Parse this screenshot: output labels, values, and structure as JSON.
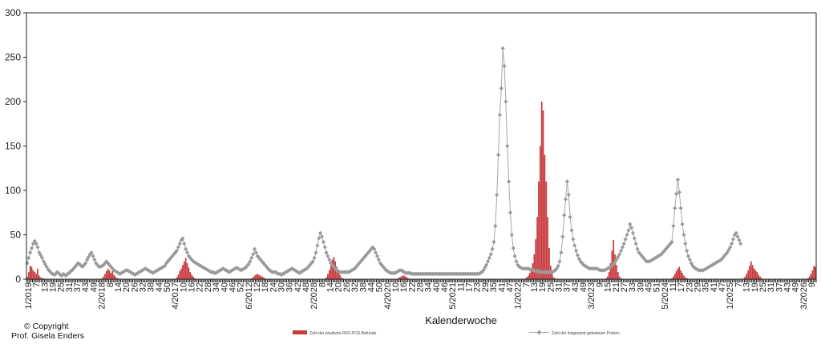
{
  "copyright": {
    "line1": "© Copyright",
    "line2": "Prof. Gisela Enders"
  },
  "colors": {
    "positive_bar": "#c8383c",
    "total_line": "#a8a8a8",
    "total_marker": "#9a9a9a",
    "axis": "#222222"
  },
  "chart_data": {
    "type": "bar",
    "title": "",
    "xlabel": "Kalenderwoche",
    "ylabel": "",
    "ylim": [
      0,
      300
    ],
    "yticks": [
      0,
      50,
      100,
      150,
      200,
      250,
      300
    ],
    "grid": false,
    "legend_position": "bottom",
    "x_start": "1/2019",
    "x_end": "9/2026",
    "x_tick_labels": [
      "1/2019",
      "7",
      "13",
      "19",
      "25",
      "31",
      "37",
      "43",
      "49",
      "2/2018",
      "8",
      "14",
      "20",
      "26",
      "32",
      "38",
      "44",
      "50",
      "4/2017",
      "10",
      "16",
      "22",
      "28",
      "34",
      "40",
      "46",
      "52",
      "6/2012",
      "12",
      "18",
      "24",
      "30",
      "36",
      "42",
      "48",
      "2/2028",
      "8",
      "14",
      "20",
      "26",
      "32",
      "38",
      "44",
      "50",
      "4/2020",
      "10",
      "16",
      "22",
      "28",
      "34",
      "40",
      "46",
      "5/2021",
      "11",
      "17",
      "23",
      "29",
      "35",
      "41",
      "47",
      "1/2022",
      "7",
      "13",
      "19",
      "25",
      "31",
      "37",
      "43",
      "49",
      "3/2023",
      "9",
      "15",
      "21",
      "27",
      "33",
      "39",
      "45",
      "51",
      "5/2024",
      "11",
      "17",
      "23",
      "29",
      "35",
      "41",
      "47",
      "1/2025",
      "7",
      "13",
      "19",
      "25",
      "31",
      "37",
      "43",
      "49",
      "3/2026",
      "9"
    ],
    "series": [
      {
        "name": "Zahl der positiven RSV-PCR-Befunde",
        "type": "bar",
        "values": [
          3,
          8,
          15,
          14,
          10,
          8,
          6,
          12,
          4,
          2,
          1,
          1,
          0,
          0,
          0,
          0,
          0,
          0,
          0,
          0,
          0,
          0,
          0,
          0,
          0,
          0,
          0,
          0,
          0,
          0,
          0,
          0,
          0,
          0,
          0,
          0,
          0,
          0,
          0,
          0,
          0,
          0,
          0,
          0,
          0,
          0,
          0,
          0,
          0,
          0,
          1,
          3,
          6,
          9,
          12,
          10,
          7,
          9,
          5,
          3,
          1,
          1,
          0,
          0,
          0,
          0,
          0,
          0,
          0,
          0,
          0,
          0,
          0,
          0,
          0,
          0,
          0,
          0,
          0,
          0,
          0,
          0,
          0,
          0,
          0,
          0,
          0,
          0,
          0,
          0,
          0,
          0,
          0,
          0,
          0,
          0,
          0,
          0,
          0,
          0,
          2,
          5,
          9,
          12,
          16,
          20,
          24,
          18,
          13,
          8,
          5,
          3,
          1,
          0,
          0,
          0,
          0,
          0,
          0,
          0,
          0,
          0,
          0,
          0,
          0,
          0,
          0,
          0,
          0,
          0,
          0,
          0,
          0,
          0,
          0,
          0,
          0,
          0,
          0,
          0,
          0,
          0,
          0,
          0,
          0,
          0,
          0,
          0,
          0,
          0,
          1,
          2,
          4,
          5,
          6,
          5,
          4,
          3,
          2,
          1,
          0,
          0,
          0,
          0,
          0,
          0,
          0,
          0,
          0,
          0,
          0,
          0,
          0,
          0,
          0,
          0,
          0,
          0,
          0,
          0,
          0,
          0,
          0,
          0,
          0,
          0,
          0,
          0,
          0,
          0,
          0,
          0,
          0,
          0,
          0,
          0,
          0,
          0,
          0,
          0,
          2,
          6,
          10,
          15,
          22,
          25,
          20,
          14,
          9,
          5,
          2,
          1,
          0,
          0,
          0,
          0,
          0,
          0,
          0,
          0,
          0,
          0,
          0,
          0,
          0,
          0,
          0,
          0,
          0,
          0,
          0,
          0,
          0,
          0,
          0,
          0,
          0,
          0,
          0,
          0,
          0,
          0,
          0,
          0,
          0,
          0,
          0,
          0,
          1,
          2,
          3,
          4,
          4,
          3,
          2,
          1,
          0,
          0,
          0,
          0,
          0,
          0,
          0,
          0,
          0,
          0,
          0,
          0,
          0,
          0,
          0,
          0,
          0,
          0,
          0,
          0,
          0,
          0,
          0,
          0,
          0,
          0,
          0,
          0,
          0,
          0,
          0,
          0,
          0,
          0,
          0,
          0,
          0,
          0,
          0,
          0,
          0,
          0,
          0,
          0,
          0,
          0,
          0,
          0,
          0,
          0,
          0,
          0,
          0,
          0,
          0,
          0,
          0,
          0,
          0,
          0,
          0,
          0,
          0,
          0,
          0,
          0,
          0,
          0,
          0,
          0,
          0,
          0,
          0,
          0,
          0,
          0,
          0,
          1,
          2,
          4,
          7,
          11,
          18,
          28,
          45,
          70,
          110,
          150,
          200,
          190,
          140,
          110,
          70,
          35,
          15,
          6,
          2,
          1,
          0,
          0,
          0,
          0,
          0,
          0,
          0,
          0,
          0,
          0,
          0,
          0,
          0,
          0,
          0,
          0,
          0,
          0,
          0,
          0,
          0,
          0,
          0,
          0,
          0,
          0,
          0,
          0,
          0,
          0,
          0,
          0,
          0,
          1,
          3,
          8,
          18,
          32,
          44,
          28,
          16,
          8,
          3,
          1,
          0,
          0,
          0,
          0,
          0,
          0,
          0,
          0,
          0,
          0,
          0,
          0,
          0,
          0,
          0,
          0,
          0,
          0,
          0,
          0,
          0,
          0,
          0,
          0,
          0,
          0,
          0,
          0,
          0,
          0,
          0,
          0,
          0,
          1,
          3,
          6,
          9,
          12,
          14,
          10,
          7,
          4,
          2,
          1,
          0,
          0,
          0,
          0,
          0,
          0,
          0,
          0,
          0,
          0,
          0,
          0,
          0,
          0,
          0,
          0,
          0,
          0,
          0,
          0,
          0,
          0,
          0,
          0,
          0,
          0,
          0,
          0,
          0,
          0,
          0,
          0,
          0,
          0,
          0,
          0,
          0,
          1,
          3,
          6,
          10,
          15,
          20,
          16,
          12,
          10,
          8,
          5,
          3,
          1,
          0,
          0,
          0,
          0,
          0,
          0,
          0,
          0,
          0,
          0,
          0,
          0,
          0,
          0,
          0,
          0,
          0,
          0,
          0,
          0,
          0,
          0,
          0,
          0,
          0,
          0,
          0,
          0,
          0,
          0,
          1,
          3,
          6,
          10,
          15,
          14
        ]
      },
      {
        "name": "Zahl der insgesamt getesteten Proben",
        "type": "line",
        "values": [
          18,
          24,
          30,
          35,
          40,
          43,
          40,
          36,
          30,
          27,
          24,
          20,
          17,
          14,
          11,
          9,
          7,
          6,
          5,
          6,
          8,
          7,
          5,
          4,
          6,
          5,
          4,
          6,
          7,
          9,
          10,
          12,
          14,
          16,
          18,
          17,
          15,
          14,
          16,
          18,
          22,
          25,
          28,
          30,
          26,
          22,
          18,
          16,
          14,
          14,
          15,
          16,
          18,
          20,
          18,
          16,
          14,
          12,
          10,
          9,
          8,
          7,
          6,
          7,
          8,
          9,
          10,
          10,
          9,
          8,
          7,
          6,
          5,
          6,
          7,
          8,
          9,
          10,
          11,
          12,
          11,
          10,
          9,
          8,
          7,
          8,
          9,
          10,
          11,
          12,
          13,
          14,
          15,
          18,
          20,
          22,
          24,
          26,
          28,
          30,
          32,
          36,
          40,
          44,
          46,
          40,
          34,
          30,
          26,
          24,
          22,
          20,
          19,
          18,
          17,
          16,
          15,
          14,
          13,
          12,
          11,
          10,
          9,
          8,
          8,
          7,
          7,
          8,
          9,
          10,
          11,
          12,
          11,
          10,
          9,
          8,
          9,
          10,
          11,
          12,
          13,
          12,
          11,
          10,
          11,
          12,
          13,
          15,
          17,
          20,
          24,
          28,
          34,
          30,
          26,
          24,
          22,
          20,
          18,
          16,
          14,
          12,
          10,
          9,
          8,
          8,
          8,
          7,
          6,
          6,
          5,
          6,
          7,
          8,
          9,
          10,
          11,
          12,
          11,
          10,
          9,
          8,
          7,
          8,
          9,
          10,
          11,
          12,
          14,
          16,
          18,
          20,
          24,
          30,
          38,
          46,
          52,
          48,
          42,
          36,
          30,
          26,
          22,
          18,
          16,
          14,
          12,
          10,
          9,
          8,
          8,
          8,
          8,
          8,
          8,
          8,
          9,
          10,
          11,
          12,
          14,
          16,
          18,
          20,
          22,
          24,
          26,
          28,
          30,
          32,
          34,
          36,
          34,
          30,
          26,
          22,
          18,
          16,
          14,
          12,
          10,
          9,
          8,
          7,
          7,
          7,
          7,
          8,
          9,
          10,
          10,
          9,
          8,
          7,
          7,
          7,
          7,
          6,
          6,
          6,
          6,
          6,
          6,
          6,
          6,
          6,
          6,
          6,
          6,
          6,
          6,
          6,
          6,
          6,
          6,
          6,
          6,
          6,
          6,
          6,
          6,
          6,
          6,
          6,
          6,
          6,
          6,
          6,
          6,
          6,
          6,
          6,
          6,
          6,
          6,
          6,
          6,
          6,
          6,
          6,
          6,
          6,
          6,
          7,
          8,
          10,
          13,
          16,
          20,
          24,
          28,
          34,
          42,
          60,
          95,
          140,
          185,
          215,
          260,
          240,
          200,
          150,
          110,
          75,
          50,
          35,
          26,
          20,
          16,
          14,
          13,
          12,
          12,
          12,
          12,
          12,
          11,
          11,
          10,
          10,
          9,
          9,
          9,
          8,
          8,
          8,
          8,
          8,
          8,
          8,
          8,
          8,
          9,
          10,
          12,
          15,
          20,
          30,
          48,
          72,
          90,
          110,
          95,
          70,
          55,
          45,
          38,
          32,
          27,
          23,
          20,
          18,
          16,
          15,
          14,
          13,
          12,
          12,
          12,
          12,
          12,
          12,
          11,
          10,
          10,
          10,
          10,
          11,
          12,
          13,
          14,
          15,
          17,
          19,
          22,
          25,
          28,
          32,
          36,
          40,
          45,
          50,
          55,
          62,
          58,
          52,
          46,
          40,
          34,
          30,
          28,
          26,
          24,
          22,
          20,
          20,
          20,
          21,
          22,
          23,
          24,
          25,
          26,
          27,
          28,
          30,
          32,
          34,
          36,
          38,
          40,
          42,
          60,
          80,
          96,
          112,
          98,
          80,
          62,
          50,
          40,
          32,
          26,
          22,
          18,
          15,
          13,
          12,
          11,
          10,
          10,
          10,
          10,
          11,
          12,
          13,
          14,
          15,
          16,
          17,
          18,
          19,
          20,
          21,
          22,
          24,
          26,
          28,
          30,
          33,
          36,
          40,
          45,
          50,
          52,
          48,
          44,
          40
        ]
      }
    ]
  }
}
